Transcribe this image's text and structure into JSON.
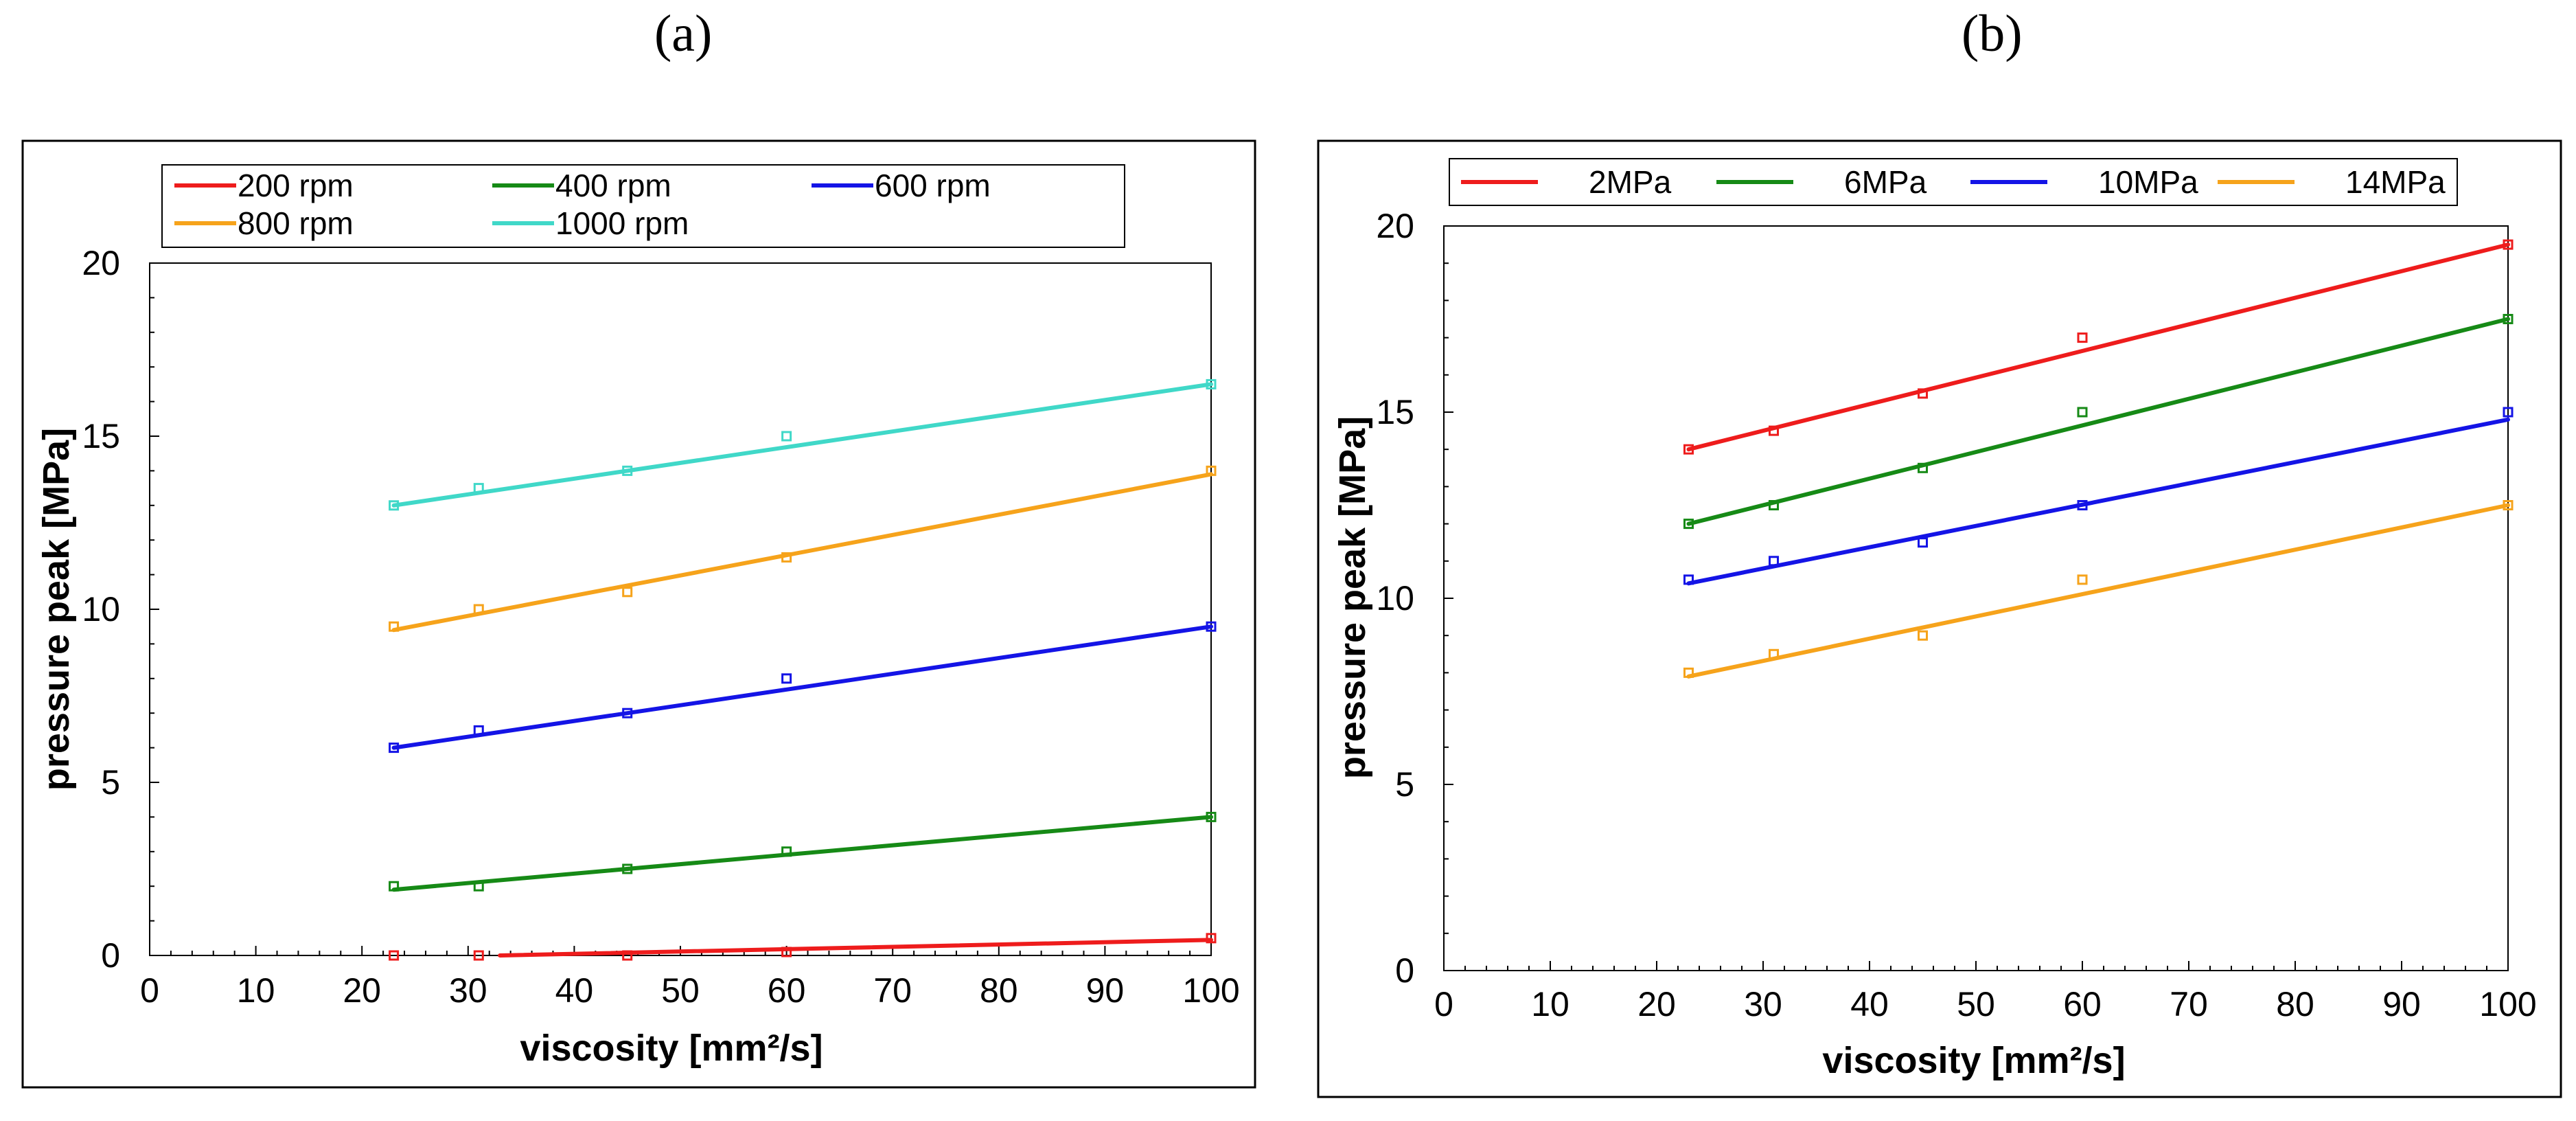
{
  "panels": [
    {
      "id": "a",
      "label": "(a)",
      "xlabel": "viscosity [mm²/s]",
      "ylabel": "pressure peak [MPa]"
    },
    {
      "id": "b",
      "label": "(b)",
      "xlabel": "viscosity [mm²/s]",
      "ylabel": "pressure peak [MPa]"
    }
  ],
  "chart_data": [
    {
      "type": "scatter",
      "panel": "a",
      "title": "",
      "xlabel": "viscosity [mm²/s]",
      "ylabel": "pressure peak [MPa]",
      "xlim": [
        0,
        100
      ],
      "ylim": [
        0,
        20
      ],
      "xticks": [
        0,
        10,
        20,
        30,
        40,
        50,
        60,
        70,
        80,
        90,
        100
      ],
      "yticks": [
        0,
        5,
        10,
        15,
        20
      ],
      "legend_position": "top",
      "grid": false,
      "x": [
        23,
        31,
        45,
        60,
        100
      ],
      "series": [
        {
          "name": "200 rpm",
          "color": "#ee1c1c",
          "points": [
            0,
            0,
            0,
            0.1,
            0.5
          ],
          "fit": [
            [
              33,
              0
            ],
            [
              100,
              0.45
            ]
          ]
        },
        {
          "name": "400  rpm",
          "color": "#168a16",
          "points": [
            2,
            2,
            2.5,
            3,
            4
          ],
          "fit": [
            [
              23,
              1.9
            ],
            [
              100,
              4
            ]
          ]
        },
        {
          "name": "600 rpm",
          "color": "#1414e6",
          "points": [
            6,
            6.5,
            7,
            8,
            9.5
          ],
          "fit": [
            [
              23,
              6
            ],
            [
              100,
              9.5
            ]
          ]
        },
        {
          "name": "800 rpm",
          "color": "#f6a31b",
          "points": [
            9.5,
            10,
            10.5,
            11.5,
            14
          ],
          "fit": [
            [
              23,
              9.4
            ],
            [
              100,
              13.9
            ]
          ]
        },
        {
          "name": "1000 rpm",
          "color": "#40d8c8",
          "points": [
            13,
            13.5,
            14,
            15,
            16.5
          ],
          "fit": [
            [
              23,
              13
            ],
            [
              100,
              16.5
            ]
          ]
        }
      ]
    },
    {
      "type": "scatter",
      "panel": "b",
      "title": "",
      "xlabel": "viscosity [mm²/s]",
      "ylabel": "pressure peak [MPa]",
      "xlim": [
        0,
        100
      ],
      "ylim": [
        0,
        20
      ],
      "xticks": [
        0,
        10,
        20,
        30,
        40,
        50,
        60,
        70,
        80,
        90,
        100
      ],
      "yticks": [
        0,
        5,
        10,
        15,
        20
      ],
      "legend_position": "top",
      "grid": false,
      "x": [
        23,
        31,
        45,
        60,
        100
      ],
      "series": [
        {
          "name": "2MPa",
          "color": "#ee1c1c",
          "points": [
            14,
            14.5,
            15.5,
            17,
            19.5
          ],
          "fit": [
            [
              23,
              14
            ],
            [
              100,
              19.5
            ]
          ]
        },
        {
          "name": "6MPa",
          "color": "#168a16",
          "points": [
            12,
            12.5,
            13.5,
            15,
            17.5
          ],
          "fit": [
            [
              23,
              12
            ],
            [
              100,
              17.5
            ]
          ]
        },
        {
          "name": "10MPa",
          "color": "#1414e6",
          "points": [
            10.5,
            11,
            11.5,
            12.5,
            15
          ],
          "fit": [
            [
              23,
              10.4
            ],
            [
              100,
              14.8
            ]
          ]
        },
        {
          "name": "14MPa",
          "color": "#f6a31b",
          "points": [
            8,
            8.5,
            9,
            10.5,
            12.5
          ],
          "fit": [
            [
              23,
              7.9
            ],
            [
              100,
              12.5
            ]
          ]
        }
      ]
    }
  ]
}
